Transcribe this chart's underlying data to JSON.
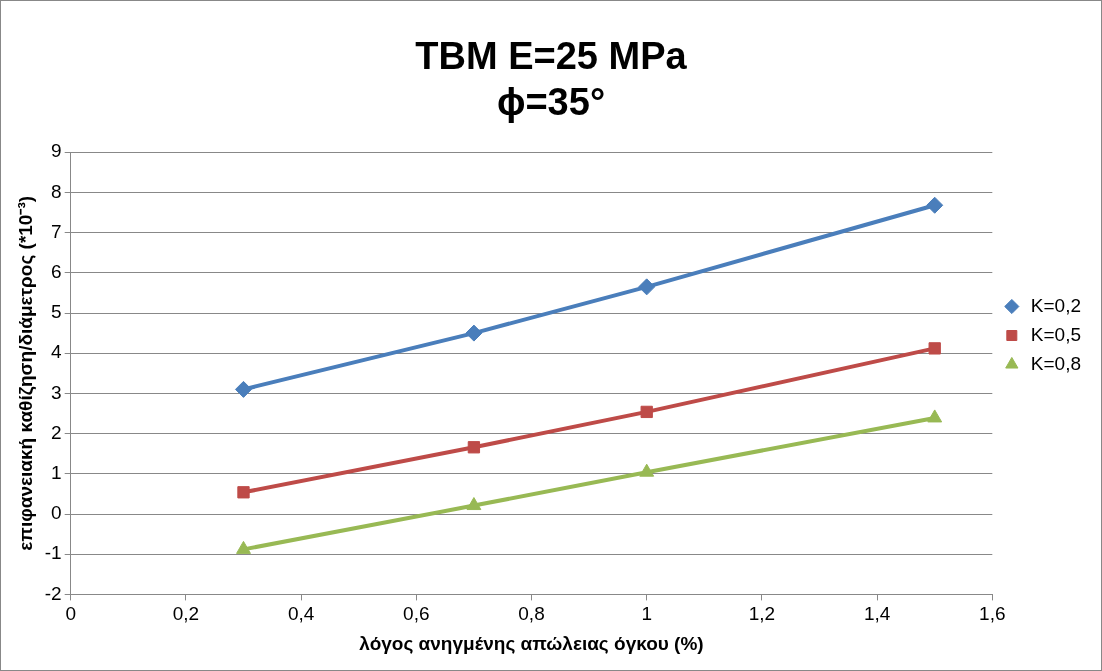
{
  "chart_data": {
    "type": "line",
    "title": "TBM E=25 MPa\nϕ=35°",
    "xlabel": "λόγος ανηγμένης απώλειας όγκου (%)",
    "ylabel": "επιφανειακή καθίζηση/διάμετρος (*10⁻³)",
    "x": [
      0.3,
      0.7,
      1,
      1.5
    ],
    "series": [
      {
        "name": "K=0,2",
        "color": "#4a7ebb",
        "marker": "diamond",
        "values": [
          3.1,
          4.5,
          5.65,
          7.68
        ]
      },
      {
        "name": "K=0,5",
        "color": "#be4b48",
        "marker": "square",
        "values": [
          0.54,
          1.66,
          2.54,
          4.12
        ]
      },
      {
        "name": "K=0,8",
        "color": "#98b954",
        "marker": "triangle",
        "values": [
          -0.88,
          0.21,
          1.04,
          2.39
        ]
      }
    ],
    "xlim": [
      0,
      1.6
    ],
    "xticks": [
      {
        "value": 0,
        "label": "0"
      },
      {
        "value": 0.2,
        "label": "0,2"
      },
      {
        "value": 0.4,
        "label": "0,4"
      },
      {
        "value": 0.6,
        "label": "0,6"
      },
      {
        "value": 0.8,
        "label": "0,8"
      },
      {
        "value": 1,
        "label": "1"
      },
      {
        "value": 1.2,
        "label": "1,2"
      },
      {
        "value": 1.4,
        "label": "1,4"
      },
      {
        "value": 1.6,
        "label": "1,6"
      }
    ],
    "ylim": [
      -2,
      9
    ],
    "yticks": [
      -2,
      -1,
      0,
      1,
      2,
      3,
      4,
      5,
      6,
      7,
      8,
      9
    ],
    "grid": "y",
    "legend": "right",
    "line_style": "solid"
  }
}
